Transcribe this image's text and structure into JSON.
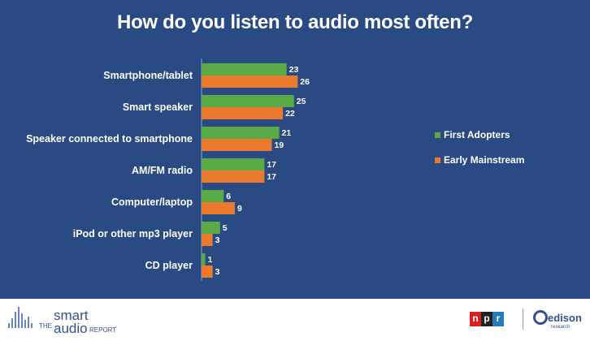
{
  "title": "How do you listen to audio most often?",
  "colors": {
    "background": "#2a4a84",
    "first_adopters": "#5aab46",
    "early_mainstream": "#ec7a2e",
    "text": "#ffffff"
  },
  "chart_data": {
    "type": "bar",
    "orientation": "horizontal",
    "title": "How do you listen to audio most often?",
    "categories": [
      "Smartphone/tablet",
      "Smart speaker",
      "Speaker connected to smartphone",
      "AM/FM radio",
      "Computer/laptop",
      "iPod or other mp3 player",
      "CD player"
    ],
    "series": [
      {
        "name": "First Adopters",
        "color": "#5aab46",
        "values": [
          23,
          25,
          21,
          17,
          6,
          5,
          1
        ]
      },
      {
        "name": "Early Mainstream",
        "color": "#ec7a2e",
        "values": [
          26,
          22,
          19,
          17,
          9,
          3,
          3
        ]
      }
    ],
    "data_labels": true,
    "legend_position": "right",
    "grid": false
  },
  "footer": {
    "brand_the": "THE",
    "brand_smart": "smart",
    "brand_audio": "audio",
    "brand_report": "REPORT",
    "npr_letters": [
      "n",
      "p",
      "r"
    ],
    "npr_colors": [
      "#d62021",
      "#222222",
      "#237bbd"
    ],
    "edison_name": "edison",
    "edison_sub": "research"
  }
}
